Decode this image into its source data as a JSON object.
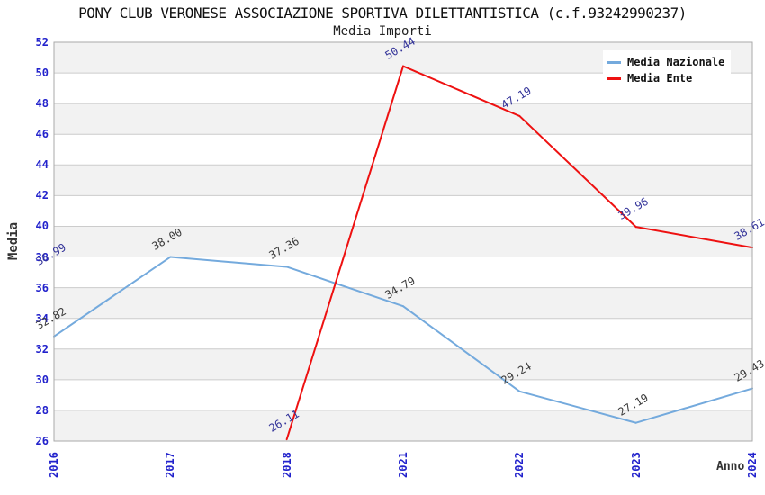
{
  "header": {
    "title": "PONY CLUB VERONESE ASSOCIAZIONE SPORTIVA DILETTANTISTICA (c.f.93242990237)",
    "subtitle": "Media Importi"
  },
  "chart_data": {
    "type": "line",
    "title": "PONY CLUB VERONESE ASSOCIAZIONE SPORTIVA DILETTANTISTICA (c.f.93242990237)",
    "subtitle": "Media Importi",
    "xlabel": "Anno",
    "ylabel": "Media",
    "categories": [
      "2016",
      "2017",
      "2018",
      "2021",
      "2022",
      "2023",
      "2024"
    ],
    "series": [
      {
        "name": "Media Nazionale",
        "color": "#74aadd",
        "label_color": "#3a3a3a",
        "values": [
          32.82,
          38.0,
          37.36,
          34.79,
          29.24,
          27.19,
          29.43
        ]
      },
      {
        "name": "Media Ente",
        "color": "#ee1111",
        "label_color": "#333399",
        "values": [
          36.99,
          null,
          26.11,
          50.44,
          47.19,
          39.96,
          38.61
        ]
      }
    ],
    "ylim": [
      26,
      52
    ],
    "ytick_step": 2,
    "grid": "horizontal, alternating bands",
    "legend_position": "top-right",
    "colors": {
      "axis_tick_label": "#2222cc",
      "band_fill": "#f2f2f2",
      "grid_line": "#cccccc",
      "plot_border": "#aaaaaa"
    }
  }
}
